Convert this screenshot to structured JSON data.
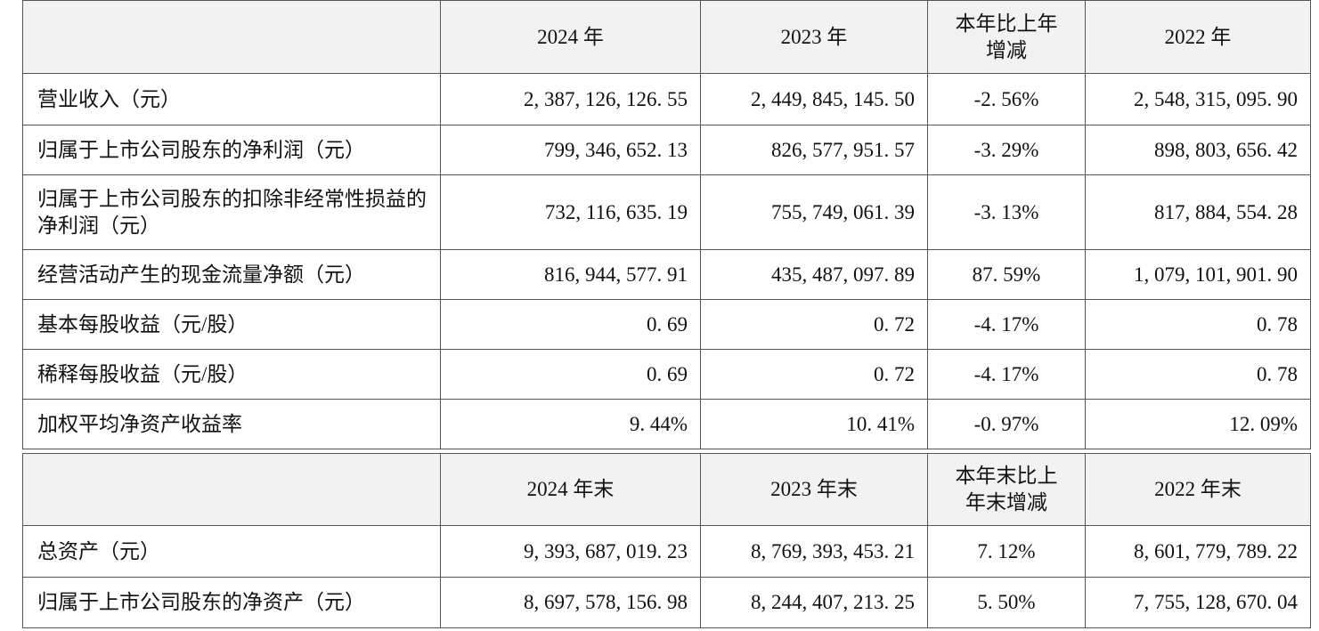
{
  "table1": {
    "columns": [
      "2024 年",
      "2023 年",
      "本年比上年增减",
      "2022 年"
    ],
    "rows": [
      [
        "营业收入（元）",
        "2, 387, 126, 126. 55",
        "2, 449, 845, 145. 50",
        "-2. 56%",
        "2, 548, 315, 095. 90"
      ],
      [
        "归属于上市公司股东的净利润（元）",
        "799, 346, 652. 13",
        "826, 577, 951. 57",
        "-3. 29%",
        "898, 803, 656. 42"
      ],
      [
        "归属于上市公司股东的扣除非经常性损益的净利润（元）",
        "732, 116, 635. 19",
        "755, 749, 061. 39",
        "-3. 13%",
        "817, 884, 554. 28"
      ],
      [
        "经营活动产生的现金流量净额（元）",
        "816, 944, 577. 91",
        "435, 487, 097. 89",
        "87. 59%",
        "1, 079, 101, 901. 90"
      ],
      [
        "基本每股收益（元/股）",
        "0. 69",
        "0. 72",
        "-4. 17%",
        "0. 78"
      ],
      [
        "稀释每股收益（元/股）",
        "0. 69",
        "0. 72",
        "-4. 17%",
        "0. 78"
      ],
      [
        "加权平均净资产收益率",
        "9. 44%",
        "10. 41%",
        "-0. 97%",
        "12. 09%"
      ]
    ]
  },
  "table2": {
    "columns": [
      "2024 年末",
      "2023 年末",
      "本年末比上年末增减",
      "2022 年末"
    ],
    "rows": [
      [
        "总资产（元）",
        "9, 393, 687, 019. 23",
        "8, 769, 393, 453. 21",
        "7. 12%",
        "8, 601, 779, 789. 22"
      ],
      [
        "归属于上市公司股东的净资产（元）",
        "8, 697, 578, 156. 98",
        "8, 244, 407, 213. 25",
        "5. 50%",
        "7, 755, 128, 670. 04"
      ]
    ]
  }
}
